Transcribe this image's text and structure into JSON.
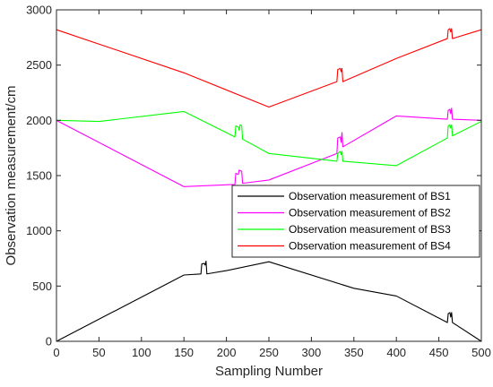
{
  "chart_data": {
    "type": "line",
    "title": "",
    "xlabel": "Sampling Number",
    "ylabel": "Observation measurement/cm",
    "xlim": [
      0,
      500
    ],
    "ylim": [
      0,
      3000
    ],
    "xticks": [
      "0",
      "50",
      "100",
      "150",
      "200",
      "250",
      "300",
      "350",
      "400",
      "450",
      "500"
    ],
    "yticks": [
      "0",
      "500",
      "1000",
      "1500",
      "2000",
      "2500",
      "3000"
    ],
    "grid": false,
    "legend_position": "center-right",
    "series": [
      {
        "name": "Observation measurement of BS1",
        "color": "#000000",
        "points": [
          [
            0,
            0
          ],
          [
            150,
            600
          ],
          [
            170,
            610
          ],
          [
            171,
            700
          ],
          [
            174,
            705
          ],
          [
            175,
            690
          ],
          [
            176,
            725
          ],
          [
            177,
            610
          ],
          [
            200,
            640
          ],
          [
            250,
            720
          ],
          [
            350,
            480
          ],
          [
            400,
            410
          ],
          [
            460,
            170
          ],
          [
            461,
            250
          ],
          [
            463,
            260
          ],
          [
            464,
            220
          ],
          [
            465,
            260
          ],
          [
            466,
            170
          ],
          [
            500,
            0
          ]
        ]
      },
      {
        "name": "Observation measurement of BS2",
        "color": "#ff00ff",
        "points": [
          [
            0,
            2000
          ],
          [
            150,
            1400
          ],
          [
            210,
            1420
          ],
          [
            211,
            1520
          ],
          [
            214,
            1510
          ],
          [
            215,
            1550
          ],
          [
            218,
            1540
          ],
          [
            219,
            1430
          ],
          [
            250,
            1460
          ],
          [
            330,
            1700
          ],
          [
            331,
            1840
          ],
          [
            334,
            1850
          ],
          [
            335,
            1800
          ],
          [
            336,
            1890
          ],
          [
            337,
            1760
          ],
          [
            400,
            2040
          ],
          [
            460,
            2010
          ],
          [
            461,
            2090
          ],
          [
            463,
            2100
          ],
          [
            464,
            2060
          ],
          [
            465,
            2110
          ],
          [
            466,
            2010
          ],
          [
            500,
            2000
          ]
        ]
      },
      {
        "name": "Observation measurement of BS3",
        "color": "#00ff00",
        "points": [
          [
            0,
            2000
          ],
          [
            50,
            1990
          ],
          [
            150,
            2080
          ],
          [
            210,
            1850
          ],
          [
            211,
            1950
          ],
          [
            214,
            1940
          ],
          [
            215,
            1910
          ],
          [
            216,
            1960
          ],
          [
            218,
            1950
          ],
          [
            219,
            1830
          ],
          [
            250,
            1700
          ],
          [
            330,
            1630
          ],
          [
            331,
            1700
          ],
          [
            334,
            1720
          ],
          [
            335,
            1690
          ],
          [
            336,
            1720
          ],
          [
            337,
            1630
          ],
          [
            400,
            1590
          ],
          [
            460,
            1840
          ],
          [
            461,
            1950
          ],
          [
            463,
            1960
          ],
          [
            464,
            1930
          ],
          [
            465,
            1960
          ],
          [
            466,
            1860
          ],
          [
            500,
            1990
          ]
        ]
      },
      {
        "name": "Observation measurement of BS4",
        "color": "#ff0000",
        "points": [
          [
            0,
            2820
          ],
          [
            150,
            2430
          ],
          [
            250,
            2120
          ],
          [
            330,
            2350
          ],
          [
            331,
            2460
          ],
          [
            334,
            2470
          ],
          [
            335,
            2440
          ],
          [
            336,
            2470
          ],
          [
            337,
            2350
          ],
          [
            400,
            2560
          ],
          [
            460,
            2740
          ],
          [
            461,
            2820
          ],
          [
            463,
            2830
          ],
          [
            464,
            2800
          ],
          [
            465,
            2830
          ],
          [
            466,
            2740
          ],
          [
            500,
            2820
          ]
        ]
      }
    ]
  }
}
